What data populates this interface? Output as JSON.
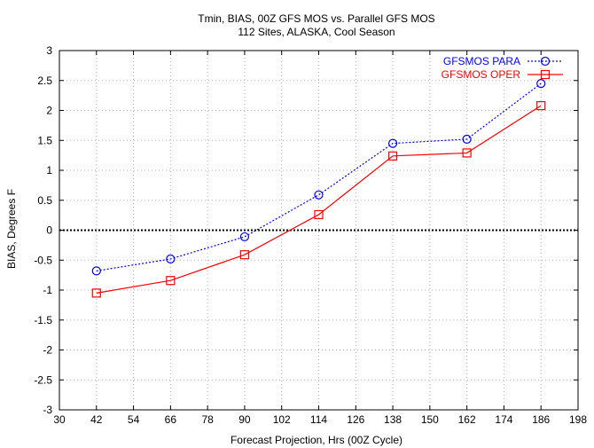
{
  "chart_data": {
    "type": "line",
    "title": "Tmin, BIAS, 00Z GFS MOS vs. Parallel GFS MOS",
    "subtitle": "112 Sites, ALASKA, Cool Season",
    "xlabel": "Forecast Projection, Hrs (00Z Cycle)",
    "ylabel": "BIAS, Degrees F",
    "xlim": [
      30,
      198
    ],
    "ylim": [
      -3,
      3
    ],
    "xticks": [
      30,
      42,
      54,
      66,
      78,
      90,
      102,
      114,
      126,
      138,
      150,
      162,
      174,
      186,
      198
    ],
    "yticks": [
      "-3",
      "-2.5",
      "-2",
      "-1.5",
      "-1",
      "-0.5",
      "0",
      "0.5",
      "1",
      "1.5",
      "2",
      "2.5",
      "3"
    ],
    "grid": true,
    "legend_position": "top-right",
    "x": [
      42,
      66,
      90,
      114,
      138,
      162,
      186
    ],
    "series": [
      {
        "name": "GFSMOS PARA",
        "color": "#0000ff",
        "line_style": "dotted",
        "marker": "circle",
        "values": [
          -0.68,
          -0.48,
          -0.11,
          0.59,
          1.45,
          1.52,
          2.45
        ]
      },
      {
        "name": "GFSMOS OPER",
        "color": "#ff0000",
        "line_style": "solid",
        "marker": "square",
        "values": [
          -1.05,
          -0.84,
          -0.41,
          0.26,
          1.24,
          1.29,
          2.08
        ]
      }
    ],
    "zero_line": true
  }
}
